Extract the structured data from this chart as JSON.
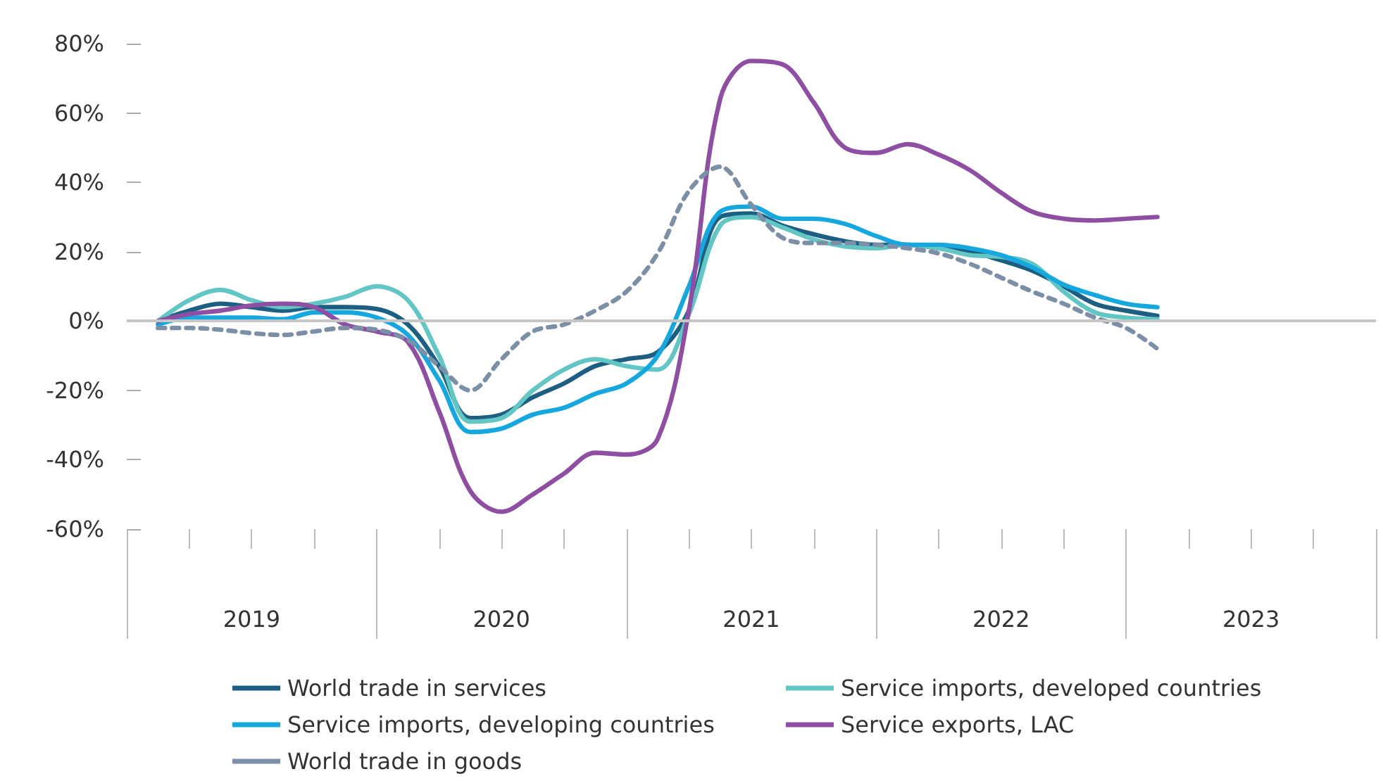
{
  "chart_data": {
    "type": "line",
    "x": [
      2019.125,
      2019.25,
      2019.375,
      2019.5,
      2019.625,
      2019.75,
      2019.875,
      2020,
      2020.125,
      2020.25,
      2020.375,
      2020.5,
      2020.625,
      2020.75,
      2020.875,
      2021,
      2021.125,
      2021.25,
      2021.375,
      2021.5,
      2021.625,
      2021.75,
      2021.875,
      2022,
      2022.125,
      2022.25,
      2022.375,
      2022.5,
      2022.625,
      2022.75,
      2022.875,
      2023,
      2023.125
    ],
    "series": [
      {
        "name": "World trade in services",
        "color": "#1d5f82",
        "values": [
          0,
          3,
          5,
          4,
          3,
          4,
          4,
          3.5,
          -1,
          -13,
          -28,
          -27,
          -22,
          -18,
          -13,
          -11,
          -9,
          3,
          30,
          31,
          27.5,
          25,
          23,
          22,
          22,
          21,
          20,
          17.5,
          14.5,
          10,
          5,
          3,
          1.5
        ]
      },
      {
        "name": "Service imports, developed countries",
        "color": "#62c6c4",
        "values": [
          0,
          6,
          9,
          6,
          4,
          5,
          7,
          10,
          6,
          -10,
          -29,
          -28,
          -20,
          -14,
          -11,
          -13,
          -14,
          2,
          27.5,
          30,
          27,
          23.5,
          21.5,
          21,
          22,
          21,
          19,
          18.5,
          16.5,
          8.5,
          2.5,
          1,
          0.5
        ]
      },
      {
        "name": "Service imports, developing countries",
        "color": "#16a7df",
        "values": [
          -1,
          1,
          1,
          1,
          0.5,
          2.5,
          2.5,
          1,
          -4,
          -17,
          -32,
          -31,
          -27,
          -25,
          -21,
          -18,
          -10,
          10,
          31.5,
          33,
          29.5,
          29.5,
          28,
          24.5,
          22,
          22,
          21,
          19,
          15.5,
          10.5,
          7.5,
          5,
          4
        ]
      },
      {
        "name": "Service exports, LAC",
        "color": "#8e4ea2",
        "values": [
          0,
          2,
          3,
          4.5,
          5,
          4,
          -1,
          -3,
          -6,
          -26,
          -49,
          -55,
          -50,
          -44,
          -38,
          -38.5,
          -34,
          3,
          64,
          75,
          74,
          63,
          50,
          48.5,
          51,
          48,
          43.5,
          37,
          31.5,
          29.5,
          29,
          29.5,
          30
        ]
      },
      {
        "name": "World trade in goods",
        "color": "#7b90a6",
        "line_style": "dashed",
        "values": [
          -2,
          -2,
          -2.5,
          -3.5,
          -4,
          -3,
          -2,
          -2.5,
          -5.5,
          -13,
          -20,
          -11,
          -3,
          -1,
          3,
          8.5,
          19.5,
          37.5,
          44.5,
          33.5,
          24,
          22.5,
          22.5,
          22,
          21,
          19.5,
          16.5,
          12.5,
          8.5,
          5,
          1,
          -2,
          -8
        ]
      }
    ],
    "xlim": [
      2019,
      2024
    ],
    "xticks": [
      {
        "value": 2019,
        "label": null
      },
      {
        "value": 2019.25,
        "label": null
      },
      {
        "value": 2019.5,
        "label": "2019"
      },
      {
        "value": 2019.75,
        "label": null
      },
      {
        "value": 2020,
        "label": null
      },
      {
        "value": 2020.25,
        "label": null
      },
      {
        "value": 2020.5,
        "label": "2020"
      },
      {
        "value": 2020.75,
        "label": null
      },
      {
        "value": 2021,
        "label": null
      },
      {
        "value": 2021.25,
        "label": null
      },
      {
        "value": 2021.5,
        "label": "2021"
      },
      {
        "value": 2021.75,
        "label": null
      },
      {
        "value": 2022,
        "label": null
      },
      {
        "value": 2022.25,
        "label": null
      },
      {
        "value": 2022.5,
        "label": "2022"
      },
      {
        "value": 2022.75,
        "label": null
      },
      {
        "value": 2023,
        "label": null
      },
      {
        "value": 2023.25,
        "label": null
      },
      {
        "value": 2023.5,
        "label": "2023"
      },
      {
        "value": 2023.75,
        "label": null
      },
      {
        "value": 2024,
        "label": null
      }
    ],
    "ylim": [
      -60,
      80
    ],
    "yticks": [
      {
        "value": -60,
        "label": "-60%"
      },
      {
        "value": -40,
        "label": "-40%"
      },
      {
        "value": -20,
        "label": "-20%"
      },
      {
        "value": 0,
        "label": "0%"
      },
      {
        "value": 20,
        "label": "20%"
      },
      {
        "value": 40,
        "label": "40%"
      },
      {
        "value": 60,
        "label": "60%"
      },
      {
        "value": 80,
        "label": "80%"
      }
    ],
    "ref_lines": [
      {
        "axis": "y",
        "value": 0,
        "color": "#c6c6c6"
      }
    ],
    "legend": "bottom",
    "marker": "none",
    "line_style": "solid",
    "grid": false
  }
}
